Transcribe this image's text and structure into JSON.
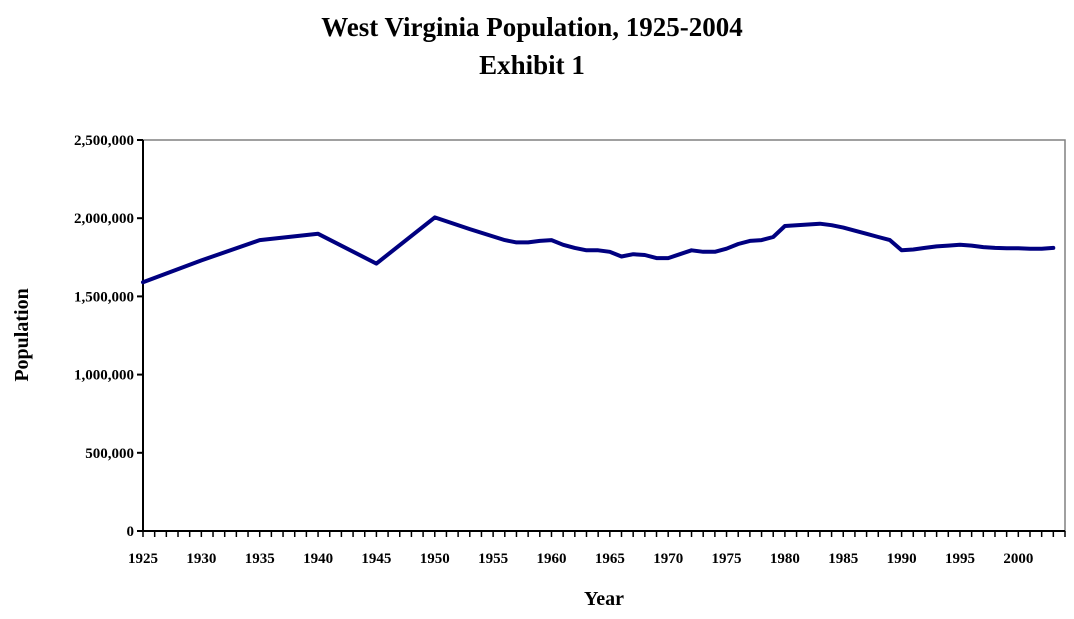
{
  "chart_data": {
    "type": "line",
    "title": "West Virginia Population, 1925-2004",
    "subtitle": "Exhibit 1",
    "xlabel": "Year",
    "ylabel": "Population",
    "xlim": [
      1925,
      2004
    ],
    "ylim": [
      0,
      2500000
    ],
    "x_ticks": [
      1925,
      1930,
      1935,
      1940,
      1945,
      1950,
      1955,
      1960,
      1965,
      1970,
      1975,
      1980,
      1985,
      1990,
      1995,
      2000
    ],
    "y_ticks": [
      0,
      500000,
      1000000,
      1500000,
      2000000,
      2500000
    ],
    "y_tick_labels": [
      "0",
      "500,000",
      "1,000,000",
      "1,500,000",
      "2,000,000",
      "2,500,000"
    ],
    "grid": false,
    "line_color": "#000080",
    "series": [
      {
        "x": [
          1925,
          1930,
          1935,
          1940,
          1945,
          1950,
          1953,
          1956,
          1957,
          1958,
          1959,
          1960,
          1961,
          1962,
          1963,
          1964,
          1965,
          1966,
          1967,
          1968,
          1969,
          1970,
          1971,
          1972,
          1973,
          1974,
          1975,
          1976,
          1977,
          1978,
          1979,
          1980,
          1981,
          1982,
          1983,
          1984,
          1985,
          1986,
          1987,
          1988,
          1989,
          1990,
          1991,
          1992,
          1993,
          1994,
          1995,
          1996,
          1997,
          1998,
          1999,
          2000,
          2001,
          2002,
          2003
        ],
        "y": [
          1590000,
          1730000,
          1860000,
          1900000,
          1710000,
          2005000,
          1930000,
          1860000,
          1845000,
          1845000,
          1855000,
          1860000,
          1830000,
          1810000,
          1795000,
          1795000,
          1785000,
          1755000,
          1770000,
          1765000,
          1745000,
          1745000,
          1770000,
          1795000,
          1785000,
          1785000,
          1805000,
          1835000,
          1855000,
          1860000,
          1880000,
          1950000,
          1955000,
          1960000,
          1965000,
          1955000,
          1940000,
          1920000,
          1900000,
          1880000,
          1860000,
          1795000,
          1800000,
          1810000,
          1820000,
          1825000,
          1830000,
          1825000,
          1815000,
          1810000,
          1808000,
          1808000,
          1805000,
          1805000,
          1810000
        ]
      }
    ]
  }
}
